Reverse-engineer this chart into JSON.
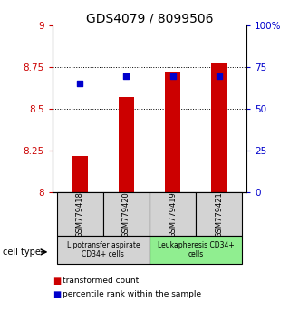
{
  "title": "GDS4079 / 8099506",
  "samples": [
    "GSM779418",
    "GSM779420",
    "GSM779419",
    "GSM779421"
  ],
  "bar_values": [
    8.22,
    8.57,
    8.725,
    8.78
  ],
  "dot_values": [
    8.655,
    8.695,
    8.695,
    8.695
  ],
  "bar_color": "#cc0000",
  "dot_color": "#0000cc",
  "ylim": [
    8.0,
    9.0
  ],
  "yticks_left": [
    8.0,
    8.25,
    8.5,
    8.75,
    9.0
  ],
  "ytick_labels_left": [
    "8",
    "8.25",
    "8.5",
    "8.75",
    "9"
  ],
  "yticks_right": [
    0,
    25,
    50,
    75,
    100
  ],
  "ytick_labels_right": [
    "0",
    "25",
    "50",
    "75",
    "100%"
  ],
  "grid_ticks": [
    8.25,
    8.5,
    8.75
  ],
  "group1_label": "Lipotransfer aspirate\nCD34+ cells",
  "group2_label": "Leukapheresis CD34+\ncells",
  "cell_type_label": "cell type",
  "legend_bar_label": "transformed count",
  "legend_dot_label": "percentile rank within the sample",
  "group1_color": "#d3d3d3",
  "group2_color": "#90ee90",
  "bar_width": 0.35,
  "title_fontsize": 10,
  "tick_fontsize": 7.5,
  "sample_fontsize": 6,
  "group_fontsize": 5.5,
  "legend_fontsize": 6.5,
  "cell_type_fontsize": 7
}
